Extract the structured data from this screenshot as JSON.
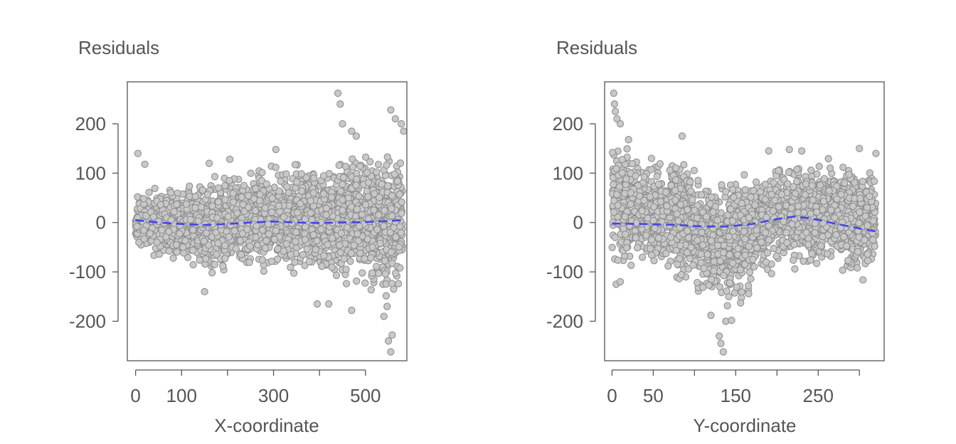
{
  "colors": {
    "point_fill": "#c8c8c8",
    "point_stroke": "#8f8f8f",
    "smoother": "#4444ee",
    "axis": "#555555"
  },
  "chart_data": [
    {
      "type": "scatter",
      "title": "Residuals",
      "xlabel": "X-coordinate",
      "ylabel": "",
      "xlim": [
        -18,
        590
      ],
      "ylim": [
        -280,
        285
      ],
      "x_ticks": [
        0,
        100,
        200,
        300,
        400,
        500
      ],
      "x_tick_labels": [
        "0",
        "100",
        "",
        "300",
        "",
        "500"
      ],
      "y_ticks": [
        -200,
        -100,
        0,
        100,
        200
      ],
      "y_tick_labels": [
        "-200",
        "-100",
        "0",
        "100",
        "200"
      ],
      "grid": false,
      "legend": "none",
      "series": [
        {
          "kind": "points",
          "bands": [
            {
              "x": 0,
              "lo": -50,
              "hi": 60
            },
            {
              "x": 50,
              "lo": -80,
              "hi": 75
            },
            {
              "x": 100,
              "lo": -85,
              "hi": 90
            },
            {
              "x": 150,
              "lo": -120,
              "hi": 105
            },
            {
              "x": 200,
              "lo": -115,
              "hi": 115
            },
            {
              "x": 250,
              "lo": -110,
              "hi": 125
            },
            {
              "x": 300,
              "lo": -115,
              "hi": 135
            },
            {
              "x": 350,
              "lo": -115,
              "hi": 135
            },
            {
              "x": 400,
              "lo": -130,
              "hi": 125
            },
            {
              "x": 450,
              "lo": -140,
              "hi": 160
            },
            {
              "x": 500,
              "lo": -145,
              "hi": 160
            },
            {
              "x": 545,
              "lo": -185,
              "hi": 170
            },
            {
              "x": 580,
              "lo": -150,
              "hi": 160
            }
          ],
          "outliers": [
            [
              440,
              262
            ],
            [
              445,
              240
            ],
            [
              450,
              200
            ],
            [
              470,
              185
            ],
            [
              480,
              175
            ],
            [
              555,
              228
            ],
            [
              565,
              210
            ],
            [
              578,
              200
            ],
            [
              583,
              185
            ],
            [
              395,
              -165
            ],
            [
              420,
              -165
            ],
            [
              470,
              -178
            ],
            [
              540,
              -190
            ],
            [
              550,
              -240
            ],
            [
              555,
              -262
            ],
            [
              558,
              -228
            ],
            [
              547,
              -170
            ],
            [
              5,
              140
            ],
            [
              20,
              118
            ],
            [
              160,
              120
            ],
            [
              205,
              128
            ],
            [
              305,
              148
            ],
            [
              150,
              -140
            ]
          ]
        },
        {
          "kind": "smoother",
          "x": [
            0,
            50,
            100,
            150,
            200,
            250,
            300,
            350,
            400,
            450,
            500,
            550,
            580
          ],
          "y": [
            5,
            0,
            -3,
            -5,
            -3,
            0,
            2,
            0,
            -1,
            0,
            1,
            3,
            5
          ]
        }
      ]
    },
    {
      "type": "scatter",
      "title": "Residuals",
      "xlabel": "Y-coordinate",
      "ylabel": "",
      "xlim": [
        -9,
        330
      ],
      "ylim": [
        -280,
        285
      ],
      "x_ticks": [
        0,
        50,
        100,
        150,
        200,
        250,
        300
      ],
      "x_tick_labels": [
        "0",
        "50",
        "",
        "150",
        "",
        "250",
        ""
      ],
      "y_ticks": [
        -200,
        -100,
        0,
        100,
        200
      ],
      "y_tick_labels": [
        "-200",
        "-100",
        "0",
        "100",
        "200"
      ],
      "grid": false,
      "legend": "none",
      "series": [
        {
          "kind": "points",
          "bands": [
            {
              "x": 0,
              "lo": -120,
              "hi": 200
            },
            {
              "x": 40,
              "lo": -100,
              "hi": 150
            },
            {
              "x": 80,
              "lo": -140,
              "hi": 160
            },
            {
              "x": 110,
              "lo": -160,
              "hi": 115
            },
            {
              "x": 140,
              "lo": -200,
              "hi": 110
            },
            {
              "x": 170,
              "lo": -150,
              "hi": 110
            },
            {
              "x": 200,
              "lo": -100,
              "hi": 140
            },
            {
              "x": 240,
              "lo": -95,
              "hi": 140
            },
            {
              "x": 280,
              "lo": -115,
              "hi": 140
            },
            {
              "x": 320,
              "lo": -125,
              "hi": 135
            }
          ],
          "outliers": [
            [
              2,
              262
            ],
            [
              3,
              240
            ],
            [
              4,
              225
            ],
            [
              6,
              210
            ],
            [
              10,
              200
            ],
            [
              20,
              168
            ],
            [
              85,
              175
            ],
            [
              130,
              -230
            ],
            [
              132,
              -245
            ],
            [
              135,
              -262
            ],
            [
              138,
              -200
            ],
            [
              145,
              -198
            ],
            [
              120,
              -188
            ],
            [
              190,
              145
            ],
            [
              215,
              148
            ],
            [
              230,
              145
            ],
            [
              300,
              150
            ],
            [
              320,
              140
            ],
            [
              5,
              -125
            ],
            [
              10,
              -120
            ]
          ]
        },
        {
          "kind": "smoother",
          "x": [
            0,
            40,
            80,
            110,
            140,
            170,
            200,
            220,
            240,
            270,
            300,
            320
          ],
          "y": [
            -2,
            -3,
            -5,
            -8,
            -8,
            -3,
            7,
            12,
            9,
            -2,
            -12,
            -18
          ]
        }
      ]
    }
  ]
}
